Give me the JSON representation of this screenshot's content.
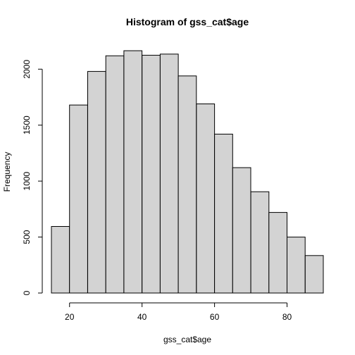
{
  "chart_data": {
    "type": "bar",
    "title": "Histogram of gss_cat$age",
    "xlabel": "gss_cat$age",
    "ylabel": "Frequency",
    "bins": [
      {
        "x0": 15,
        "x1": 20,
        "count": 595
      },
      {
        "x0": 20,
        "x1": 25,
        "count": 1680
      },
      {
        "x0": 25,
        "x1": 30,
        "count": 1980
      },
      {
        "x0": 30,
        "x1": 35,
        "count": 2120
      },
      {
        "x0": 35,
        "x1": 40,
        "count": 2165
      },
      {
        "x0": 40,
        "x1": 45,
        "count": 2125
      },
      {
        "x0": 45,
        "x1": 50,
        "count": 2135
      },
      {
        "x0": 50,
        "x1": 55,
        "count": 1940
      },
      {
        "x0": 55,
        "x1": 60,
        "count": 1690
      },
      {
        "x0": 60,
        "x1": 65,
        "count": 1420
      },
      {
        "x0": 65,
        "x1": 70,
        "count": 1120
      },
      {
        "x0": 70,
        "x1": 75,
        "count": 905
      },
      {
        "x0": 75,
        "x1": 80,
        "count": 720
      },
      {
        "x0": 80,
        "x1": 85,
        "count": 500
      },
      {
        "x0": 85,
        "x1": 90,
        "count": 335
      }
    ],
    "xlim": [
      15,
      90
    ],
    "ylim": [
      0,
      2165
    ],
    "x_ticks": [
      20,
      40,
      60,
      80
    ],
    "y_ticks": [
      0,
      500,
      1000,
      1500,
      2000
    ],
    "bar_color": "#d3d3d3",
    "border_color": "#000000",
    "grid": false,
    "legend": "none"
  }
}
